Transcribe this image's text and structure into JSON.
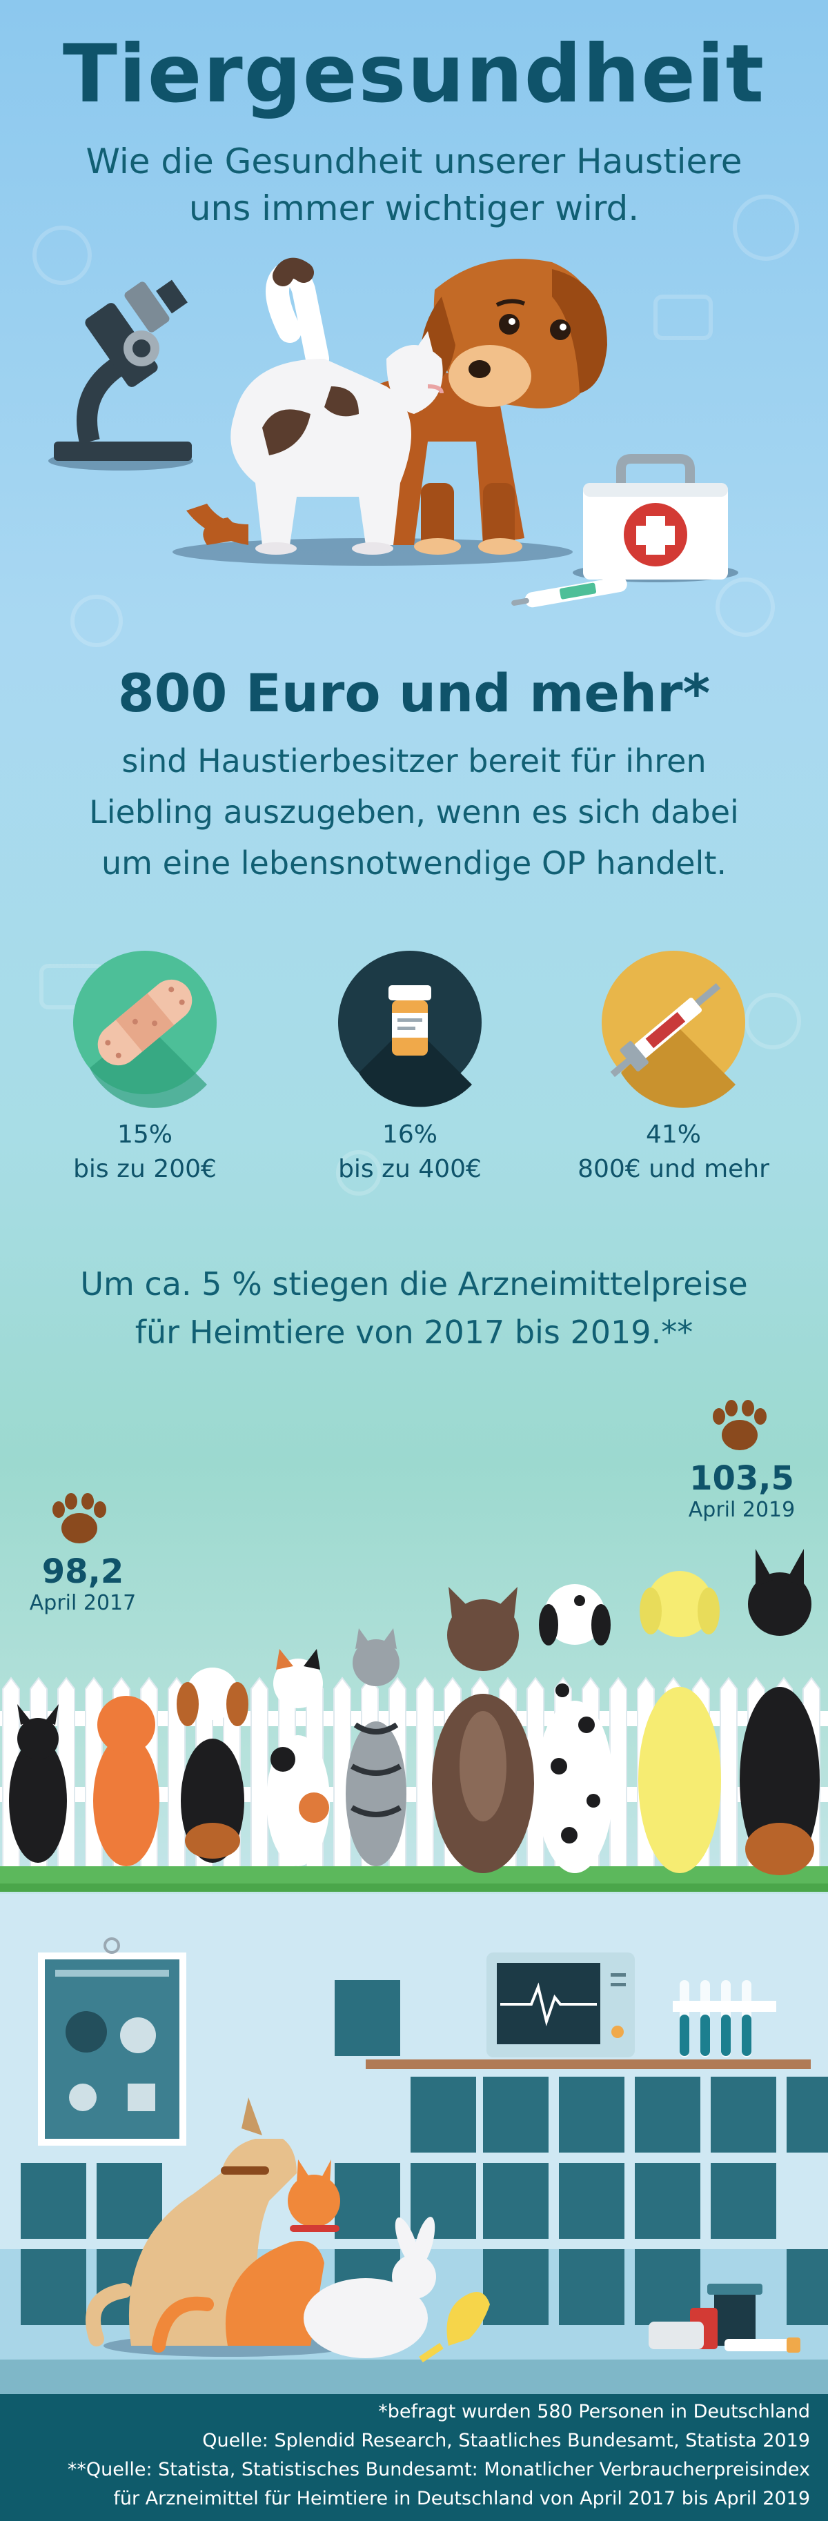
{
  "header": {
    "title": "Tiergesundheit",
    "subtitle_line1": "Wie die Gesundheit unserer Haustiere",
    "subtitle_line2": "uns immer wichtiger wird."
  },
  "headline": "800 Euro und mehr*",
  "body": {
    "line1": "sind Haustierbesitzer bereit für ihren",
    "line2": "Liebling auszugeben, wenn es sich dabei",
    "line3": "um eine lebensnotwendige OP handelt."
  },
  "stats": [
    {
      "percent": "15%",
      "label": "bis zu 200€",
      "icon": "bandage-icon",
      "color": "#4dbf98"
    },
    {
      "percent": "16%",
      "label": "bis zu 400€",
      "icon": "pill-bottle-icon",
      "color": "#1c3a46"
    },
    {
      "percent": "41%",
      "label": "800€ und mehr",
      "icon": "syringe-icon",
      "color": "#e8b64a"
    }
  ],
  "price_note": {
    "line1": "Um ca. 5 % stiegen die Arzneimittelpreise",
    "line2": "für Heimtiere von 2017 bis 2019.**"
  },
  "index_values": [
    {
      "value": "98,2",
      "date": "April 2017"
    },
    {
      "value": "103,5",
      "date": "April 2019"
    }
  ],
  "footer": {
    "line1": "*befragt wurden 580 Personen in Deutschland",
    "line2": "Quelle: Splendid Research, Staatliches Bundesamt, Statista 2019",
    "line3": "**Quelle: Statista, Statistisches Bundesamt: Monatlicher Verbraucherpreisindex",
    "line4": "für Arzneimittel für Heimtiere in Deutschland von April 2017 bis April 2019"
  }
}
